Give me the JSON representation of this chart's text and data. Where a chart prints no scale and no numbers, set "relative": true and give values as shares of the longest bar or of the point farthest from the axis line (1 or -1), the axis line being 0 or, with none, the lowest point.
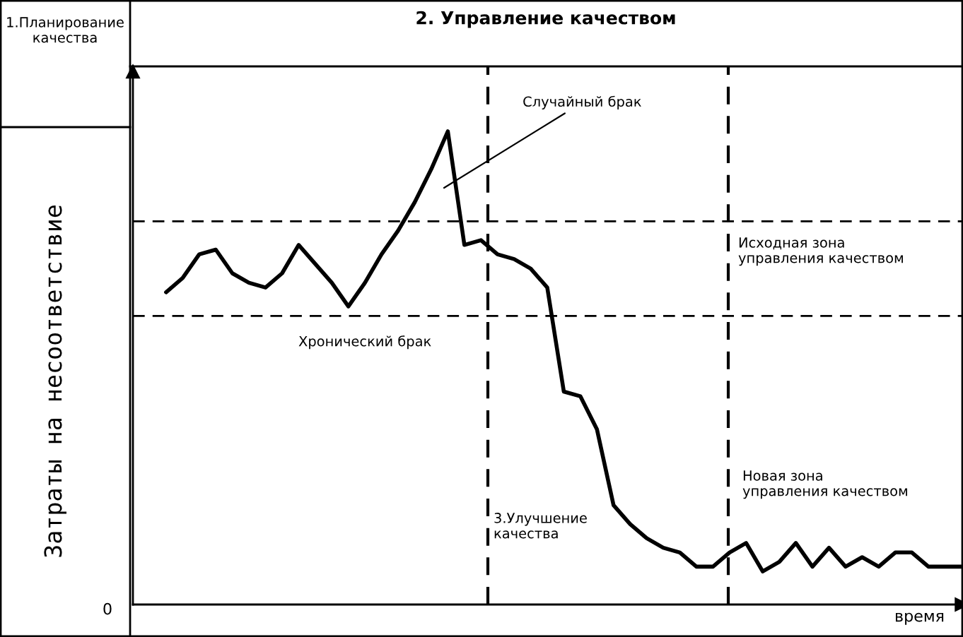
{
  "chart_data": {
    "type": "line",
    "relative": true,
    "title": "2. Управление качеством",
    "ylabel": "Затраты на несоответствие",
    "categories": [
      null,
      null,
      null,
      null,
      null,
      null,
      null,
      null,
      null,
      null,
      null,
      null,
      null,
      null,
      null,
      null,
      null,
      null,
      null,
      null,
      null,
      null,
      null,
      null,
      null,
      null,
      null,
      null,
      null,
      null,
      null,
      null,
      null,
      null,
      null,
      null,
      null,
      null,
      null,
      null,
      null,
      null,
      null,
      null,
      null,
      null,
      null,
      null,
      null,
      null,
      null
    ],
    "series": [
      {
        "color": "#000000",
        "values": [
          null,
          null,
          0.66,
          0.69,
          0.74,
          0.75,
          0.7,
          0.68,
          0.67,
          0.7,
          0.76,
          0.72,
          0.68,
          0.63,
          0.68,
          0.74,
          0.79,
          0.85,
          0.92,
          1.0,
          0.76,
          0.77,
          0.74,
          0.73,
          0.71,
          0.67,
          0.45,
          0.44,
          0.37,
          0.21,
          0.17,
          0.14,
          0.12,
          0.11,
          0.08,
          0.08,
          0.11,
          0.13,
          0.07,
          0.09,
          0.13,
          0.08,
          0.12,
          0.08,
          0.1,
          0.08,
          0.11,
          0.11,
          0.08,
          0.08,
          0.08
        ]
      }
    ],
    "ref_lines": [
      {
        "axis": "y",
        "value": 0.81,
        "color": "#000000",
        "line_style": "dashed"
      },
      {
        "axis": "y",
        "value": 0.61,
        "label": "Хронический брак",
        "color": "#000000",
        "line_style": "dashed"
      }
    ],
    "annotations": [
      "Случайный брак",
      "3.Улучшение качества",
      "1.Планирование качества",
      "Исходная зона управления качеством",
      "Новая зона управления качеством",
      "время",
      "0"
    ],
    "legend": false,
    "tick_labels": false,
    "marker": "none",
    "line_style": "solid"
  }
}
